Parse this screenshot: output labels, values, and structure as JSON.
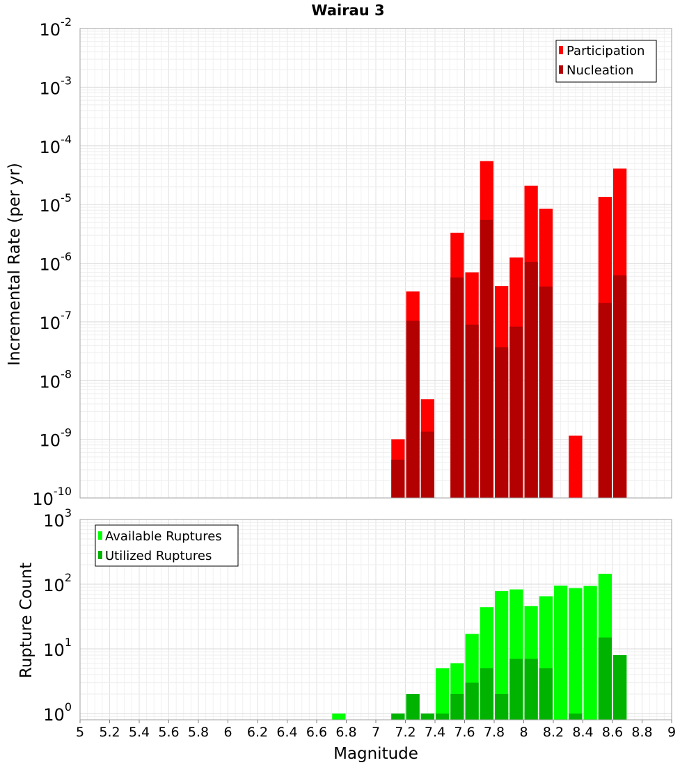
{
  "chart_data": [
    {
      "type": "bar",
      "title": "Wairau 3",
      "xlabel": "",
      "ylabel": "Incremental Rate (per yr)",
      "yscale": "log",
      "ylim": [
        1e-10,
        0.01
      ],
      "xlim": [
        5,
        9
      ],
      "bin_width": 0.1,
      "legend_position": "top-right",
      "colors": {
        "Participation": "#ff0000",
        "Nucleation": "#b30000"
      },
      "series": [
        {
          "name": "Participation",
          "x": [
            7.15,
            7.25,
            7.35,
            7.55,
            7.65,
            7.75,
            7.85,
            7.95,
            8.05,
            8.15,
            8.35,
            8.55,
            8.65
          ],
          "values": [
            1e-09,
            3.3e-07,
            4.8e-09,
            3.3e-06,
            7e-07,
            5.5e-05,
            4.1e-07,
            1.25e-06,
            2.1e-05,
            8.5e-06,
            1.15e-09,
            1.35e-05,
            4.1e-05
          ]
        },
        {
          "name": "Nucleation",
          "x": [
            7.15,
            7.25,
            7.35,
            7.55,
            7.65,
            7.75,
            7.85,
            7.95,
            8.05,
            8.15,
            8.55,
            8.65
          ],
          "values": [
            4.5e-10,
            1.05e-07,
            1.35e-09,
            5.7e-07,
            9e-08,
            5.5e-06,
            3.7e-08,
            8.3e-08,
            1.05e-06,
            4e-07,
            2.1e-07,
            6.2e-07
          ]
        }
      ]
    },
    {
      "type": "bar",
      "title": "",
      "xlabel": "Magnitude",
      "ylabel": "Rupture Count",
      "yscale": "log",
      "ylim": [
        0.8,
        1000
      ],
      "xlim": [
        5,
        9
      ],
      "bin_width": 0.1,
      "legend_position": "top-left",
      "colors": {
        "Available Ruptures": "#00ff00",
        "Utilized Ruptures": "#00b300"
      },
      "series": [
        {
          "name": "Available Ruptures",
          "x": [
            6.75,
            7.15,
            7.25,
            7.35,
            7.45,
            7.55,
            7.65,
            7.75,
            7.85,
            7.95,
            8.05,
            8.15,
            8.25,
            8.35,
            8.45,
            8.55,
            8.65
          ],
          "values": [
            1,
            1,
            2,
            1,
            5,
            6,
            17,
            44,
            78,
            83,
            46,
            65,
            95,
            87,
            94,
            145,
            8
          ]
        },
        {
          "name": "Utilized Ruptures",
          "x": [
            7.15,
            7.25,
            7.35,
            7.45,
            7.55,
            7.65,
            7.75,
            7.85,
            7.95,
            8.05,
            8.15,
            8.35,
            8.55,
            8.65
          ],
          "values": [
            1,
            2,
            1,
            1,
            2,
            3,
            5,
            2,
            7,
            7,
            5,
            1,
            15,
            8
          ]
        }
      ]
    }
  ],
  "axes": {
    "x_ticks": [
      "5",
      "5.2",
      "5.4",
      "5.6",
      "5.8",
      "6",
      "6.2",
      "6.4",
      "6.6",
      "6.8",
      "7",
      "7.2",
      "7.4",
      "7.6",
      "7.8",
      "8",
      "8.2",
      "8.4",
      "8.6",
      "8.8",
      "9"
    ],
    "top_y_exponents": [
      "-2",
      "-3",
      "-4",
      "-5",
      "-6",
      "-7",
      "-8",
      "-9",
      "-10"
    ],
    "bottom_y_exponents": [
      "3",
      "2",
      "1",
      "0"
    ],
    "y_tick_base": "10"
  }
}
